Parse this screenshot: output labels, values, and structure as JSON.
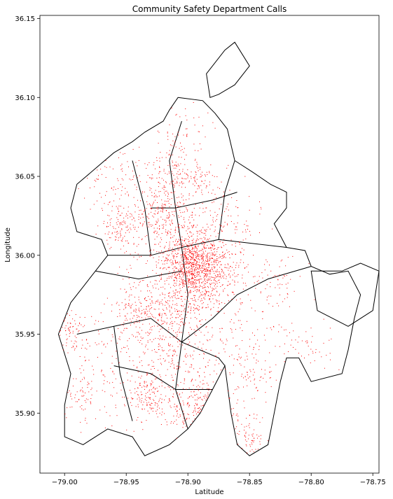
{
  "chart_data": {
    "type": "scatter",
    "title": "Community Safety Department Calls",
    "xlabel": "Latitude",
    "ylabel": "Longitude",
    "xlim": [
      -79.02,
      -78.745
    ],
    "ylim": [
      35.862,
      36.152
    ],
    "x_ticks": [
      -79.0,
      -78.95,
      -78.9,
      -78.85,
      -78.8,
      -78.75
    ],
    "x_tick_labels": [
      "−79.00",
      "−78.95",
      "−78.90",
      "−78.85",
      "−78.80",
      "−78.75"
    ],
    "y_ticks": [
      35.9,
      35.95,
      36.0,
      36.05,
      36.1,
      36.15
    ],
    "y_tick_labels": [
      "35.90",
      "35.95",
      "36.00",
      "36.05",
      "36.10",
      "36.15"
    ],
    "grid": false,
    "point_color": "#ff0000",
    "boundary_color": "#000000",
    "clusters": [
      {
        "lon": -78.895,
        "lat": 35.993,
        "spread": 0.01,
        "count": 520
      },
      {
        "lon": -78.905,
        "lat": 36.0,
        "spread": 0.02,
        "count": 600
      },
      {
        "lon": -78.875,
        "lat": 35.99,
        "spread": 0.012,
        "count": 220
      },
      {
        "lon": -78.955,
        "lat": 36.02,
        "spread": 0.008,
        "count": 120
      },
      {
        "lon": -78.925,
        "lat": 36.028,
        "spread": 0.01,
        "count": 140
      },
      {
        "lon": -78.915,
        "lat": 36.052,
        "spread": 0.01,
        "count": 120
      },
      {
        "lon": -78.89,
        "lat": 36.048,
        "spread": 0.008,
        "count": 80
      },
      {
        "lon": -78.94,
        "lat": 35.965,
        "spread": 0.012,
        "count": 160
      },
      {
        "lon": -78.915,
        "lat": 35.962,
        "spread": 0.008,
        "count": 90
      },
      {
        "lon": -78.895,
        "lat": 35.975,
        "spread": 0.01,
        "count": 120
      },
      {
        "lon": -78.935,
        "lat": 35.911,
        "spread": 0.008,
        "count": 100
      },
      {
        "lon": -78.905,
        "lat": 35.905,
        "spread": 0.012,
        "count": 140
      },
      {
        "lon": -78.88,
        "lat": 35.9,
        "spread": 0.008,
        "count": 70
      },
      {
        "lon": -78.915,
        "lat": 35.935,
        "spread": 0.012,
        "count": 90
      },
      {
        "lon": -78.995,
        "lat": 35.95,
        "spread": 0.008,
        "count": 70
      },
      {
        "lon": -78.99,
        "lat": 35.91,
        "spread": 0.01,
        "count": 60
      },
      {
        "lon": -78.85,
        "lat": 35.885,
        "spread": 0.008,
        "count": 60
      },
      {
        "lon": -78.845,
        "lat": 35.925,
        "spread": 0.01,
        "count": 60
      },
      {
        "lon": -78.83,
        "lat": 35.98,
        "spread": 0.012,
        "count": 70
      },
      {
        "lon": -78.905,
        "lat": 36.075,
        "spread": 0.012,
        "count": 60
      },
      {
        "lon": -78.96,
        "lat": 36.05,
        "spread": 0.015,
        "count": 80
      },
      {
        "lon": -78.87,
        "lat": 36.02,
        "spread": 0.015,
        "count": 80
      },
      {
        "lon": -78.805,
        "lat": 35.94,
        "spread": 0.012,
        "count": 50
      },
      {
        "lon": -78.87,
        "lat": 35.93,
        "spread": 0.02,
        "count": 90
      },
      {
        "lon": -78.96,
        "lat": 35.93,
        "spread": 0.02,
        "count": 120
      },
      {
        "lon": -78.9,
        "lat": 35.95,
        "spread": 0.03,
        "count": 250
      }
    ],
    "outline": [
      [
        -78.908,
        36.1
      ],
      [
        -78.888,
        36.098
      ],
      [
        -78.878,
        36.09
      ],
      [
        -78.868,
        36.08
      ],
      [
        -78.862,
        36.06
      ],
      [
        -78.848,
        36.053
      ],
      [
        -78.833,
        36.045
      ],
      [
        -78.82,
        36.04
      ],
      [
        -78.82,
        36.03
      ],
      [
        -78.83,
        36.02
      ],
      [
        -78.82,
        36.005
      ],
      [
        -78.805,
        36.003
      ],
      [
        -78.8,
        35.993
      ],
      [
        -78.785,
        35.988
      ],
      [
        -78.77,
        35.99
      ],
      [
        -78.76,
        35.975
      ],
      [
        -78.765,
        35.96
      ],
      [
        -78.77,
        35.94
      ],
      [
        -78.775,
        35.925
      ],
      [
        -78.8,
        35.92
      ],
      [
        -78.81,
        35.935
      ],
      [
        -78.82,
        35.935
      ],
      [
        -78.825,
        35.92
      ],
      [
        -78.83,
        35.9
      ],
      [
        -78.835,
        35.88
      ],
      [
        -78.85,
        35.873
      ],
      [
        -78.86,
        35.88
      ],
      [
        -78.865,
        35.9
      ],
      [
        -78.87,
        35.93
      ],
      [
        -78.88,
        35.915
      ],
      [
        -78.89,
        35.9
      ],
      [
        -78.9,
        35.89
      ],
      [
        -78.915,
        35.88
      ],
      [
        -78.935,
        35.873
      ],
      [
        -78.945,
        35.885
      ],
      [
        -78.965,
        35.89
      ],
      [
        -78.985,
        35.88
      ],
      [
        -79.0,
        35.885
      ],
      [
        -79.0,
        35.905
      ],
      [
        -78.995,
        35.925
      ],
      [
        -79.005,
        35.95
      ],
      [
        -78.995,
        35.97
      ],
      [
        -78.985,
        35.98
      ],
      [
        -78.975,
        35.99
      ],
      [
        -78.965,
        36.0
      ],
      [
        -78.97,
        36.01
      ],
      [
        -78.99,
        36.015
      ],
      [
        -78.995,
        36.03
      ],
      [
        -78.99,
        36.045
      ],
      [
        -78.975,
        36.055
      ],
      [
        -78.96,
        36.065
      ],
      [
        -78.945,
        36.072
      ],
      [
        -78.935,
        36.078
      ],
      [
        -78.92,
        36.085
      ],
      [
        -78.915,
        36.092
      ]
    ],
    "north_lobe": [
      [
        -78.885,
        36.115
      ],
      [
        -78.87,
        36.13
      ],
      [
        -78.862,
        36.135
      ],
      [
        -78.85,
        36.12
      ],
      [
        -78.862,
        36.108
      ],
      [
        -78.875,
        36.102
      ],
      [
        -78.882,
        36.1
      ]
    ],
    "east_lobe": [
      [
        -78.8,
        35.99
      ],
      [
        -78.795,
        35.965
      ],
      [
        -78.77,
        35.955
      ],
      [
        -78.75,
        35.965
      ],
      [
        -78.745,
        35.99
      ],
      [
        -78.76,
        35.995
      ],
      [
        -78.775,
        35.99
      ]
    ],
    "districts": [
      [
        [
          -78.965,
          36.0
        ],
        [
          -78.93,
          36.0
        ],
        [
          -78.905,
          36.005
        ],
        [
          -78.875,
          36.01
        ],
        [
          -78.82,
          36.005
        ]
      ],
      [
        [
          -78.905,
          36.005
        ],
        [
          -78.91,
          36.03
        ],
        [
          -78.915,
          36.06
        ],
        [
          -78.905,
          36.085
        ]
      ],
      [
        [
          -78.905,
          36.005
        ],
        [
          -78.9,
          35.975
        ],
        [
          -78.905,
          35.945
        ],
        [
          -78.91,
          35.915
        ],
        [
          -78.9,
          35.89
        ]
      ],
      [
        [
          -78.99,
          35.95
        ],
        [
          -78.96,
          35.955
        ],
        [
          -78.93,
          35.96
        ],
        [
          -78.905,
          35.945
        ],
        [
          -78.875,
          35.935
        ],
        [
          -78.87,
          35.93
        ]
      ],
      [
        [
          -78.96,
          35.955
        ],
        [
          -78.955,
          35.925
        ],
        [
          -78.945,
          35.895
        ]
      ],
      [
        [
          -78.93,
          36.0
        ],
        [
          -78.935,
          36.03
        ],
        [
          -78.945,
          36.06
        ]
      ],
      [
        [
          -78.875,
          36.01
        ],
        [
          -78.87,
          36.04
        ],
        [
          -78.862,
          36.06
        ]
      ],
      [
        [
          -78.975,
          35.99
        ],
        [
          -78.94,
          35.985
        ],
        [
          -78.905,
          35.99
        ]
      ],
      [
        [
          -78.905,
          35.945
        ],
        [
          -78.88,
          35.96
        ],
        [
          -78.86,
          35.975
        ],
        [
          -78.835,
          35.985
        ],
        [
          -78.8,
          35.993
        ]
      ],
      [
        [
          -78.96,
          35.93
        ],
        [
          -78.93,
          35.925
        ],
        [
          -78.91,
          35.915
        ],
        [
          -78.88,
          35.915
        ]
      ],
      [
        [
          -78.93,
          36.03
        ],
        [
          -78.91,
          36.03
        ],
        [
          -78.88,
          36.035
        ],
        [
          -78.86,
          36.04
        ]
      ]
    ]
  }
}
